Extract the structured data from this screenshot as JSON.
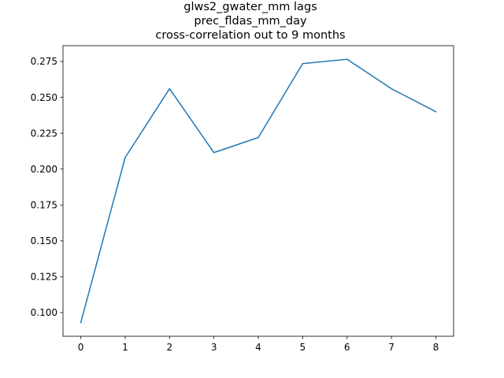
{
  "chart_data": {
    "type": "line",
    "title_lines": [
      "glws2_gwater_mm lags",
      "prec_fldas_mm_day",
      "cross-correlation out to 9 months"
    ],
    "xlabel": "",
    "ylabel": "",
    "x": [
      0,
      1,
      2,
      3,
      4,
      5,
      6,
      7,
      8
    ],
    "series": [
      {
        "values": [
          0.093,
          0.208,
          0.256,
          0.2115,
          0.222,
          0.2735,
          0.2765,
          0.256,
          0.24
        ],
        "color": "#1f77b4"
      }
    ],
    "xlim": [
      -0.4,
      8.4
    ],
    "ylim": [
      0.0835,
      0.286
    ],
    "xticks": [
      0,
      1,
      2,
      3,
      4,
      5,
      6,
      7,
      8
    ],
    "xtick_labels": [
      "0",
      "1",
      "2",
      "3",
      "4",
      "5",
      "6",
      "7",
      "8"
    ],
    "yticks": [
      0.1,
      0.125,
      0.15,
      0.175,
      0.2,
      0.225,
      0.25,
      0.275
    ],
    "ytick_labels": [
      "0.100",
      "0.125",
      "0.150",
      "0.175",
      "0.200",
      "0.225",
      "0.250",
      "0.275"
    ],
    "grid": false,
    "legend": "none"
  }
}
